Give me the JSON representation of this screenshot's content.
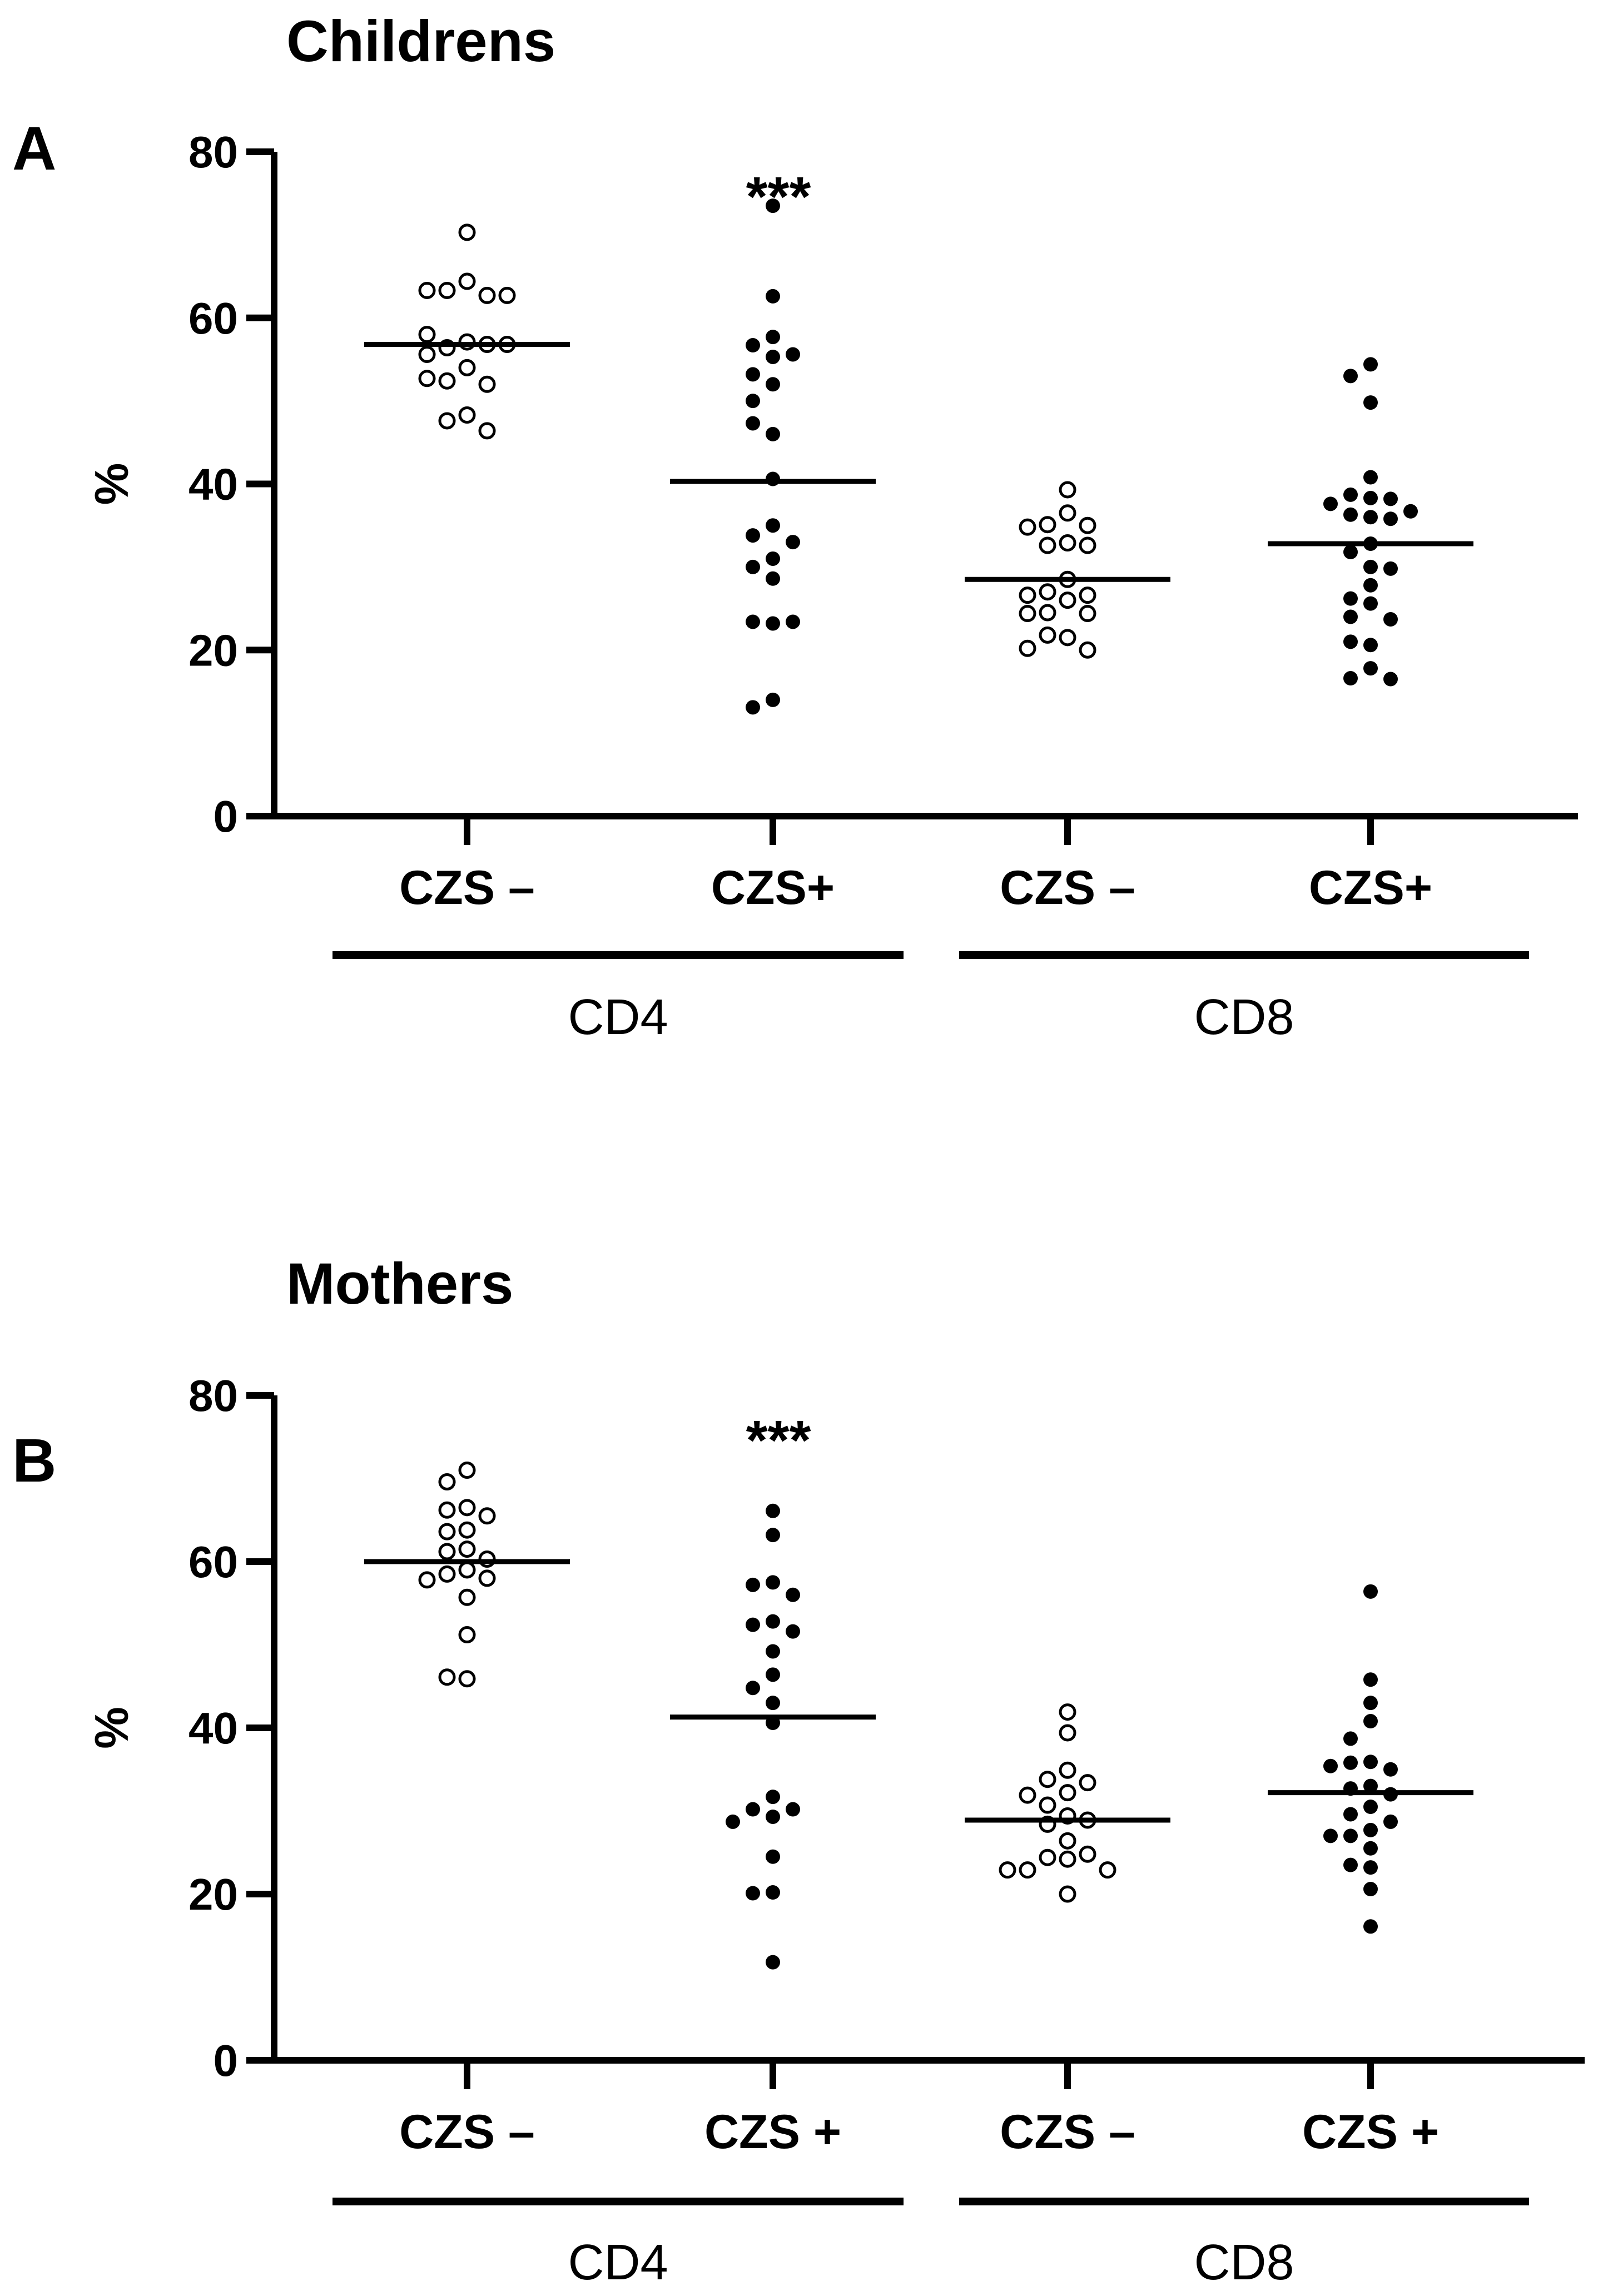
{
  "chart_data": [
    {
      "type": "scatter",
      "panel": "A",
      "title": "Childrens",
      "ylabel": "%",
      "xlabel": "",
      "ylim": [
        0,
        80
      ],
      "yticks": [
        0,
        20,
        40,
        60,
        80
      ],
      "groups": [
        {
          "label": "CD4",
          "categories": [
            0,
            1
          ]
        },
        {
          "label": "CD8",
          "categories": [
            2,
            3
          ]
        }
      ],
      "series": [
        {
          "name": "CD4 CZS –",
          "category": "CZS –",
          "marker": "open",
          "median": 56.8,
          "values": [
            70.3,
            64.4,
            63.3,
            62.7,
            63.3,
            62.7,
            57.1,
            56.4,
            56.8,
            55.6,
            58.0,
            56.8,
            54.0,
            52.4,
            52.0,
            52.7,
            48.3,
            47.6,
            46.4
          ]
        },
        {
          "name": "CD4 CZS+",
          "category": "CZS+",
          "marker": "filled",
          "median": 40.3,
          "annotation": "***",
          "values": [
            73.5,
            62.6,
            57.7,
            56.7,
            55.3,
            55.6,
            53.2,
            52.0,
            50.0,
            46.0,
            47.3,
            40.6,
            35.0,
            33.8,
            33.0,
            31.0,
            30.0,
            28.6,
            23.2,
            23.4,
            23.4,
            14.0,
            13.1
          ]
        },
        {
          "name": "CD8 CZS –",
          "category": "CZS –",
          "marker": "open",
          "median": 28.5,
          "values": [
            39.3,
            36.5,
            35.1,
            35.0,
            34.8,
            32.9,
            32.6,
            32.6,
            28.5,
            27.0,
            26.6,
            26.6,
            26.0,
            24.5,
            24.4,
            24.4,
            21.5,
            21.8,
            20.0,
            20.2
          ]
        },
        {
          "name": "CD8 CZS+",
          "category": "CZS+",
          "marker": "filled",
          "median": 32.8,
          "values": [
            54.4,
            53.0,
            49.8,
            40.8,
            38.7,
            38.3,
            38.2,
            37.6,
            36.7,
            36.3,
            36.0,
            35.8,
            32.8,
            31.8,
            30.0,
            29.8,
            27.8,
            26.2,
            25.6,
            24.0,
            23.7,
            20.6,
            21.0,
            17.8,
            16.6,
            16.5
          ]
        }
      ]
    },
    {
      "type": "scatter",
      "panel": "B",
      "title": "Mothers",
      "ylabel": "%",
      "xlabel": "",
      "ylim": [
        0,
        80
      ],
      "yticks": [
        0,
        20,
        40,
        60,
        80
      ],
      "groups": [
        {
          "label": "CD4",
          "categories": [
            0,
            1
          ]
        },
        {
          "label": "CD8",
          "categories": [
            2,
            3
          ]
        }
      ],
      "series": [
        {
          "name": "CD4 CZS –",
          "category": "CZS –",
          "marker": "open",
          "median": 60.0,
          "values": [
            71.0,
            69.6,
            66.5,
            66.2,
            65.5,
            63.8,
            63.6,
            61.5,
            61.2,
            60.3,
            59.0,
            58.5,
            58.0,
            57.8,
            55.7,
            51.2,
            45.9,
            46.1
          ]
        },
        {
          "name": "CD4 CZS +",
          "category": "CZS +",
          "marker": "filled",
          "median": 41.3,
          "annotation": "***",
          "values": [
            66.1,
            63.2,
            57.5,
            57.2,
            56.0,
            52.8,
            52.4,
            51.6,
            49.2,
            46.4,
            44.8,
            43.0,
            40.6,
            31.7,
            30.2,
            30.2,
            29.3,
            28.7,
            24.5,
            20.2,
            20.1,
            11.8
          ]
        },
        {
          "name": "CD8 CZS –",
          "category": "CZS –",
          "marker": "open",
          "median": 28.9,
          "values": [
            41.9,
            39.4,
            34.9,
            33.8,
            33.4,
            32.2,
            31.9,
            30.7,
            29.4,
            28.9,
            28.4,
            26.4,
            24.4,
            24.2,
            24.8,
            22.9,
            22.9,
            22.9,
            20.0
          ]
        },
        {
          "name": "CD8 CZS +",
          "category": "CZS +",
          "marker": "filled",
          "median": 32.2,
          "values": [
            56.4,
            45.8,
            43.0,
            40.8,
            38.7,
            35.9,
            35.8,
            35.0,
            35.4,
            33.0,
            32.7,
            32.0,
            30.5,
            29.6,
            28.7,
            27.7,
            27.0,
            27.0,
            25.5,
            23.5,
            23.2,
            20.6,
            16.1
          ]
        }
      ]
    }
  ]
}
